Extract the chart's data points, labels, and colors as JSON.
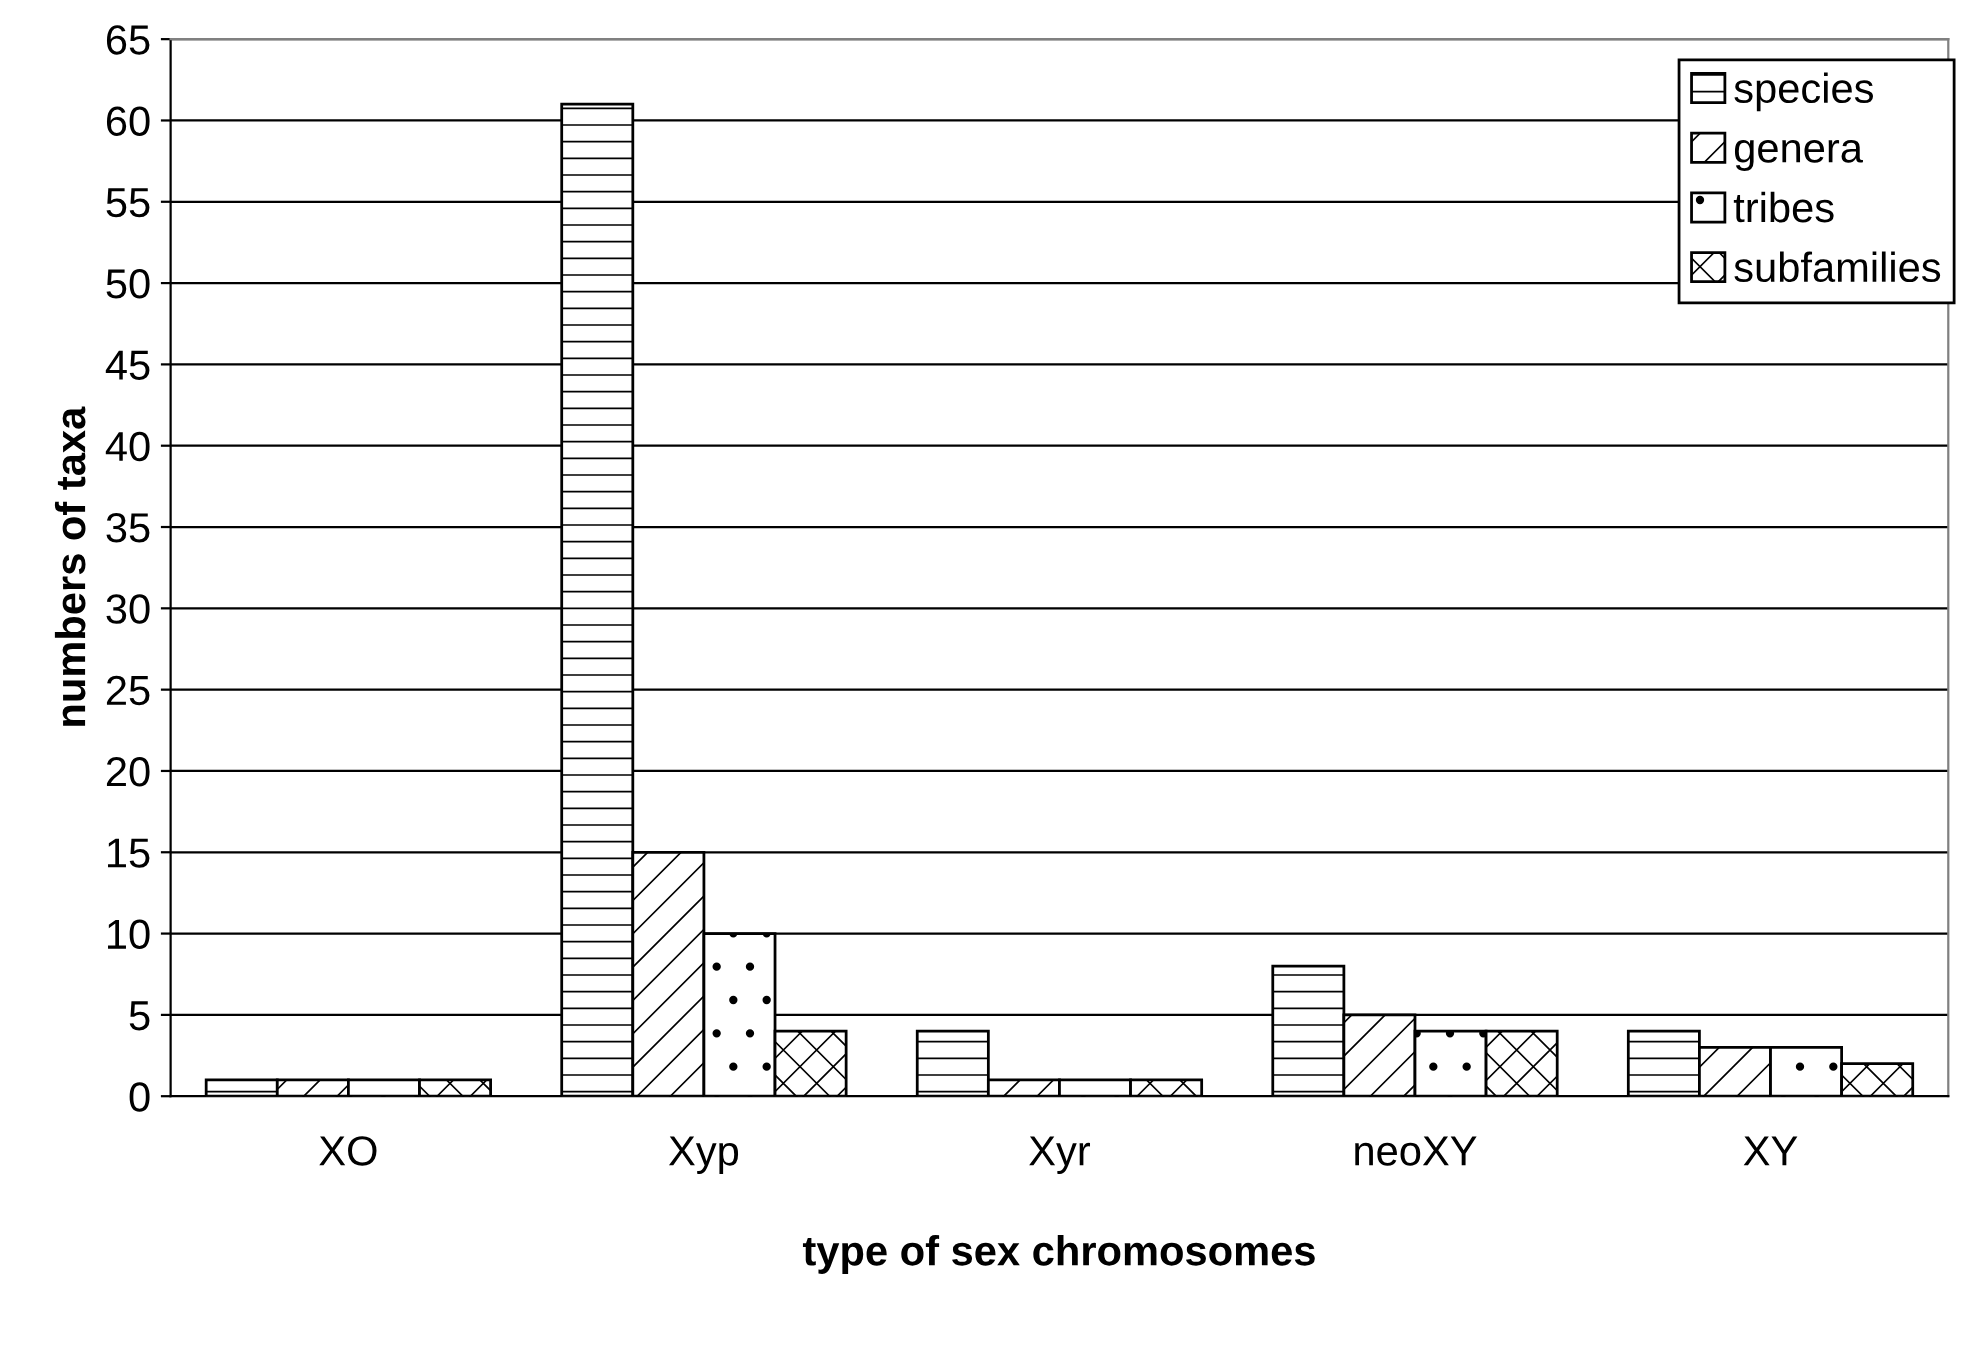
{
  "chart_data": {
    "type": "bar",
    "xlabel": "type of sex chromosomes",
    "ylabel": "numbers of taxa",
    "categories": [
      "XO",
      "Xyp",
      "Xyr",
      "neoXY",
      "XY"
    ],
    "series": [
      {
        "name": "species",
        "color": "#000000",
        "values": [
          1,
          61,
          4,
          8,
          4
        ]
      },
      {
        "name": "genera",
        "color": "#000000",
        "values": [
          1,
          15,
          1,
          5,
          3
        ]
      },
      {
        "name": "tribes",
        "color": "#000000",
        "values": [
          1,
          10,
          1,
          4,
          3
        ]
      },
      {
        "name": "subfamilies",
        "color": "#000000",
        "values": [
          1,
          4,
          1,
          4,
          2
        ]
      }
    ],
    "ylim": [
      0,
      65
    ],
    "yticks": [
      0,
      5,
      10,
      15,
      20,
      25,
      30,
      35,
      40,
      45,
      50,
      55,
      60,
      65
    ],
    "grid": "y",
    "legend": "top right"
  }
}
